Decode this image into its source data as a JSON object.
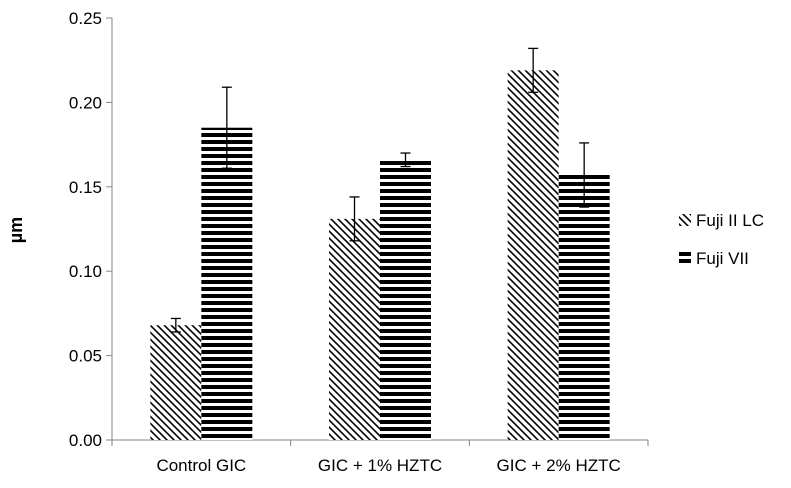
{
  "chart_data": {
    "type": "bar",
    "title": "",
    "xlabel": "",
    "ylabel": "µm",
    "ylim": [
      0,
      0.25
    ],
    "yticks": [
      "0.00",
      "0.05",
      "0.10",
      "0.15",
      "0.20",
      "0.25"
    ],
    "grid": false,
    "legend_position": "right",
    "categories": [
      "Control GIC",
      "GIC + 1% HZTC",
      "GIC + 2% HZTC"
    ],
    "series": [
      {
        "name": "Fuji II LC",
        "pattern": "diagonal-hatch",
        "values": [
          0.068,
          0.131,
          0.219
        ],
        "error": [
          0.004,
          0.013,
          0.013
        ]
      },
      {
        "name": "Fuji VII",
        "pattern": "horizontal-stripes",
        "values": [
          0.185,
          0.166,
          0.157
        ],
        "error": [
          0.024,
          0.004,
          0.019
        ]
      }
    ],
    "colors": {
      "ink": "#000000",
      "background": "#ffffff"
    }
  }
}
